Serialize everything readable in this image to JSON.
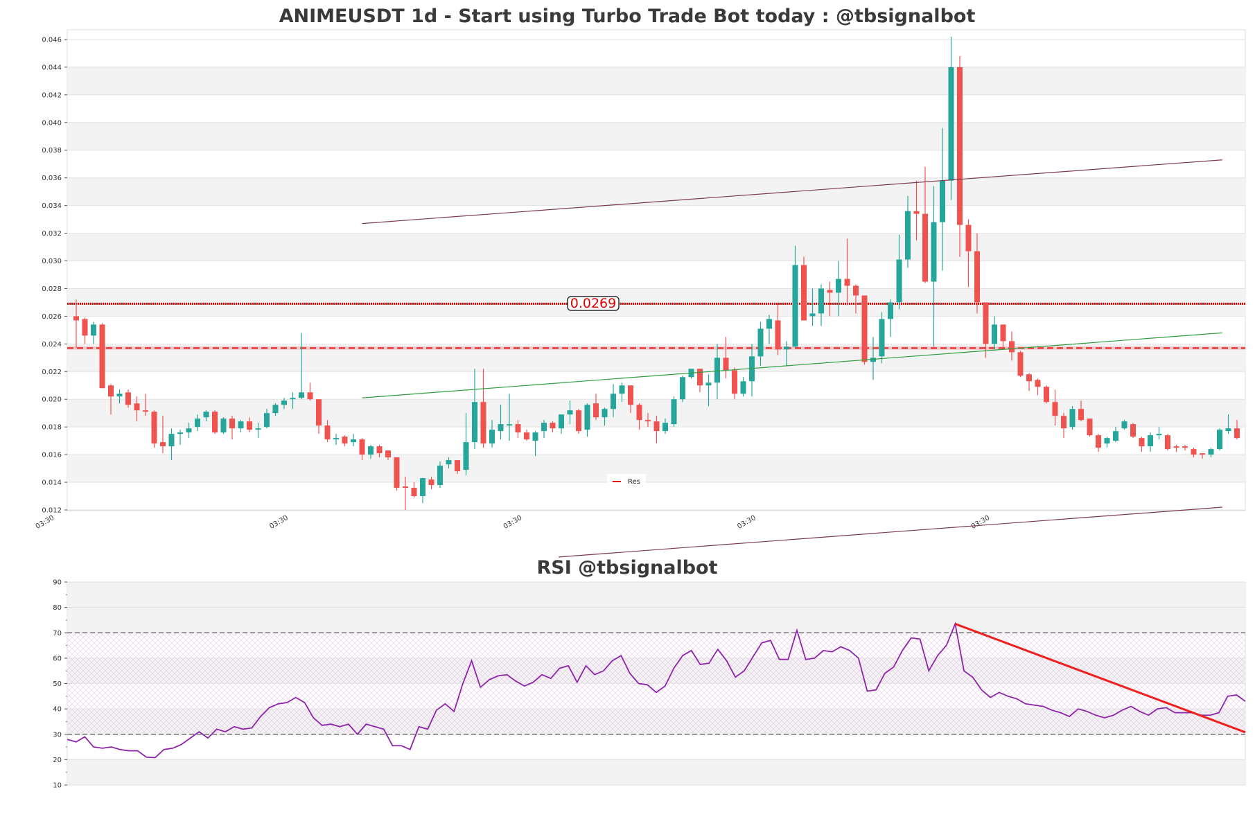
{
  "chart_data": [
    {
      "type": "candlestick",
      "title": "ANIMEUSDT 1d - Start using Turbo Trade Bot today : @tbsignalbot",
      "ylim": [
        0.01195,
        0.0467
      ],
      "yticks": [
        "0.012",
        "0.014",
        "0.016",
        "0.018",
        "0.020",
        "0.022",
        "0.024",
        "0.026",
        "0.028",
        "0.030",
        "0.032",
        "0.034",
        "0.036",
        "0.038",
        "0.040",
        "0.042",
        "0.044",
        "0.046"
      ],
      "xticks": [
        {
          "at": -2.5,
          "label": "03:30"
        },
        {
          "at": 24.5,
          "label": "03:30"
        },
        {
          "at": 51.5,
          "label": "03:30"
        },
        {
          "at": 78.5,
          "label": "03:30"
        },
        {
          "at": 105.5,
          "label": "03:30"
        }
      ],
      "colors": {
        "up": "#26a69a",
        "down": "#ef5350",
        "res": "#e00000",
        "upper_trend": "#7b3a4a",
        "lower_trend": "#2e9e3e"
      },
      "ohlc": [
        [
          0.026,
          0.0272,
          0.0237,
          0.0257
        ],
        [
          0.0258,
          0.0259,
          0.024,
          0.0246
        ],
        [
          0.0246,
          0.0256,
          0.024,
          0.0254
        ],
        [
          0.0254,
          0.0255,
          0.0208,
          0.0208
        ],
        [
          0.021,
          0.0211,
          0.0189,
          0.0202
        ],
        [
          0.0202,
          0.0207,
          0.0197,
          0.0204
        ],
        [
          0.0205,
          0.0207,
          0.0194,
          0.0196
        ],
        [
          0.0197,
          0.0202,
          0.0184,
          0.0192
        ],
        [
          0.0192,
          0.0204,
          0.0188,
          0.0191
        ],
        [
          0.0191,
          0.0192,
          0.0165,
          0.0168
        ],
        [
          0.0169,
          0.0188,
          0.0161,
          0.0166
        ],
        [
          0.0166,
          0.0179,
          0.0156,
          0.0175
        ],
        [
          0.0175,
          0.0178,
          0.0167,
          0.0176
        ],
        [
          0.0176,
          0.0183,
          0.0172,
          0.0179
        ],
        [
          0.018,
          0.0189,
          0.0177,
          0.0186
        ],
        [
          0.0187,
          0.0192,
          0.0184,
          0.0191
        ],
        [
          0.0191,
          0.0192,
          0.0175,
          0.0176
        ],
        [
          0.0176,
          0.0187,
          0.0175,
          0.0186
        ],
        [
          0.0186,
          0.0188,
          0.0171,
          0.0179
        ],
        [
          0.0179,
          0.0185,
          0.0176,
          0.0184
        ],
        [
          0.0184,
          0.0187,
          0.0176,
          0.0178
        ],
        [
          0.0178,
          0.0183,
          0.0172,
          0.0179
        ],
        [
          0.018,
          0.0193,
          0.0179,
          0.019
        ],
        [
          0.019,
          0.0197,
          0.0188,
          0.0196
        ],
        [
          0.0196,
          0.0201,
          0.0193,
          0.0199
        ],
        [
          0.02,
          0.0205,
          0.0193,
          0.0201
        ],
        [
          0.0201,
          0.0248,
          0.02,
          0.0205
        ],
        [
          0.0205,
          0.0212,
          0.0199,
          0.02
        ],
        [
          0.02,
          0.02,
          0.0175,
          0.0181
        ],
        [
          0.0181,
          0.0185,
          0.0169,
          0.0171
        ],
        [
          0.0171,
          0.0175,
          0.0167,
          0.0172
        ],
        [
          0.0173,
          0.0174,
          0.0166,
          0.0168
        ],
        [
          0.0169,
          0.0175,
          0.0166,
          0.0171
        ],
        [
          0.0171,
          0.0172,
          0.0156,
          0.016
        ],
        [
          0.016,
          0.0167,
          0.0157,
          0.0166
        ],
        [
          0.0166,
          0.0167,
          0.0158,
          0.0161
        ],
        [
          0.0163,
          0.0163,
          0.0156,
          0.0158
        ],
        [
          0.0158,
          0.0158,
          0.0134,
          0.0136
        ],
        [
          0.0137,
          0.0144,
          0.012,
          0.0136
        ],
        [
          0.0136,
          0.014,
          0.0129,
          0.013
        ],
        [
          0.013,
          0.0143,
          0.0125,
          0.0143
        ],
        [
          0.0142,
          0.0144,
          0.0135,
          0.0138
        ],
        [
          0.0138,
          0.0155,
          0.0136,
          0.0152
        ],
        [
          0.0153,
          0.0158,
          0.015,
          0.0156
        ],
        [
          0.0156,
          0.0156,
          0.0146,
          0.0148
        ],
        [
          0.0149,
          0.019,
          0.0145,
          0.0169
        ],
        [
          0.0169,
          0.0222,
          0.0164,
          0.0198
        ],
        [
          0.0198,
          0.0222,
          0.0165,
          0.0168
        ],
        [
          0.0168,
          0.0185,
          0.0165,
          0.0178
        ],
        [
          0.0177,
          0.0196,
          0.0171,
          0.0182
        ],
        [
          0.0181,
          0.0204,
          0.017,
          0.0182
        ],
        [
          0.0182,
          0.0185,
          0.0172,
          0.0176
        ],
        [
          0.0176,
          0.0178,
          0.017,
          0.0171
        ],
        [
          0.017,
          0.0177,
          0.0159,
          0.0176
        ],
        [
          0.0177,
          0.0185,
          0.0172,
          0.0183
        ],
        [
          0.0183,
          0.0184,
          0.0176,
          0.0179
        ],
        [
          0.0179,
          0.0189,
          0.0175,
          0.0189
        ],
        [
          0.0189,
          0.0199,
          0.0182,
          0.0192
        ],
        [
          0.0192,
          0.0193,
          0.0175,
          0.0177
        ],
        [
          0.0178,
          0.0197,
          0.0173,
          0.0196
        ],
        [
          0.0197,
          0.0204,
          0.0185,
          0.0187
        ],
        [
          0.0187,
          0.0194,
          0.0181,
          0.0193
        ],
        [
          0.0193,
          0.0211,
          0.0187,
          0.0204
        ],
        [
          0.0204,
          0.0212,
          0.0198,
          0.021
        ],
        [
          0.021,
          0.021,
          0.019,
          0.0196
        ],
        [
          0.0196,
          0.0197,
          0.0178,
          0.0185
        ],
        [
          0.0185,
          0.019,
          0.018,
          0.0184
        ],
        [
          0.0184,
          0.0188,
          0.0168,
          0.0177
        ],
        [
          0.0177,
          0.0186,
          0.0175,
          0.0183
        ],
        [
          0.0182,
          0.0202,
          0.018,
          0.02
        ],
        [
          0.02,
          0.0217,
          0.0198,
          0.0216
        ],
        [
          0.0216,
          0.0222,
          0.0215,
          0.0222
        ],
        [
          0.0222,
          0.0222,
          0.0205,
          0.021
        ],
        [
          0.021,
          0.0218,
          0.0195,
          0.0212
        ],
        [
          0.0212,
          0.024,
          0.02,
          0.023
        ],
        [
          0.023,
          0.0245,
          0.0215,
          0.0221
        ],
        [
          0.0221,
          0.0223,
          0.02,
          0.0204
        ],
        [
          0.0204,
          0.0216,
          0.0202,
          0.0213
        ],
        [
          0.0213,
          0.024,
          0.0202,
          0.0231
        ],
        [
          0.0231,
          0.0256,
          0.0224,
          0.0251
        ],
        [
          0.0251,
          0.0261,
          0.024,
          0.0258
        ],
        [
          0.0257,
          0.0269,
          0.0232,
          0.0236
        ],
        [
          0.0236,
          0.0242,
          0.0224,
          0.0238
        ],
        [
          0.0238,
          0.0311,
          0.0237,
          0.0297
        ],
        [
          0.0297,
          0.0303,
          0.0257,
          0.0257
        ],
        [
          0.026,
          0.028,
          0.0253,
          0.0262
        ],
        [
          0.0262,
          0.0283,
          0.0253,
          0.028
        ],
        [
          0.0279,
          0.0285,
          0.026,
          0.0277
        ],
        [
          0.0277,
          0.03,
          0.026,
          0.0287
        ],
        [
          0.0287,
          0.0316,
          0.0268,
          0.0282
        ],
        [
          0.0282,
          0.0283,
          0.0262,
          0.0275
        ],
        [
          0.0275,
          0.0275,
          0.0225,
          0.0227
        ],
        [
          0.0227,
          0.0245,
          0.0214,
          0.023
        ],
        [
          0.0231,
          0.0263,
          0.0226,
          0.0258
        ],
        [
          0.0258,
          0.0272,
          0.0245,
          0.027
        ],
        [
          0.027,
          0.0319,
          0.0265,
          0.0301
        ],
        [
          0.0301,
          0.0347,
          0.0295,
          0.0336
        ],
        [
          0.0336,
          0.0358,
          0.0315,
          0.0334
        ],
        [
          0.0334,
          0.0368,
          0.0284,
          0.0285
        ],
        [
          0.0285,
          0.0354,
          0.0238,
          0.0328
        ],
        [
          0.0328,
          0.0396,
          0.0293,
          0.0358
        ],
        [
          0.0358,
          0.0462,
          0.0344,
          0.044
        ],
        [
          0.044,
          0.0448,
          0.0303,
          0.0326
        ],
        [
          0.0326,
          0.033,
          0.0281,
          0.0307
        ],
        [
          0.0307,
          0.032,
          0.0262,
          0.027
        ],
        [
          0.027,
          0.027,
          0.023,
          0.024
        ],
        [
          0.024,
          0.026,
          0.0236,
          0.0254
        ],
        [
          0.0254,
          0.0254,
          0.0237,
          0.0242
        ],
        [
          0.0242,
          0.0249,
          0.0228,
          0.0234
        ],
        [
          0.0234,
          0.0235,
          0.0216,
          0.0217
        ],
        [
          0.0218,
          0.0219,
          0.0206,
          0.0213
        ],
        [
          0.0214,
          0.0215,
          0.0203,
          0.0209
        ],
        [
          0.0209,
          0.021,
          0.0197,
          0.0198
        ],
        [
          0.0198,
          0.0207,
          0.0181,
          0.0188
        ],
        [
          0.0188,
          0.019,
          0.0172,
          0.0179
        ],
        [
          0.018,
          0.0195,
          0.0178,
          0.0193
        ],
        [
          0.0193,
          0.0199,
          0.0184,
          0.0185
        ],
        [
          0.0186,
          0.0186,
          0.0173,
          0.0174
        ],
        [
          0.0174,
          0.0175,
          0.0162,
          0.0165
        ],
        [
          0.0168,
          0.0173,
          0.0165,
          0.0172
        ],
        [
          0.017,
          0.018,
          0.0169,
          0.0177
        ],
        [
          0.0179,
          0.0185,
          0.0178,
          0.0184
        ],
        [
          0.0182,
          0.0183,
          0.0172,
          0.0173
        ],
        [
          0.0172,
          0.0173,
          0.0162,
          0.0166
        ],
        [
          0.0166,
          0.0176,
          0.0162,
          0.0174
        ],
        [
          0.0174,
          0.018,
          0.0171,
          0.0175
        ],
        [
          0.0174,
          0.0175,
          0.0163,
          0.0164
        ],
        [
          0.0166,
          0.0167,
          0.0162,
          0.0165
        ],
        [
          0.0166,
          0.0167,
          0.0163,
          0.0165
        ],
        [
          0.0164,
          0.0165,
          0.0158,
          0.016
        ],
        [
          0.0161,
          0.0161,
          0.0157,
          0.016
        ],
        [
          0.016,
          0.0165,
          0.0158,
          0.0164
        ],
        [
          0.0164,
          0.0179,
          0.0163,
          0.0178
        ],
        [
          0.0177,
          0.0189,
          0.0175,
          0.0179
        ],
        [
          0.0179,
          0.0185,
          0.0171,
          0.0172
        ]
      ],
      "hlines": [
        {
          "value": 0.0269,
          "style": "dotted",
          "label": "0.0269"
        },
        {
          "value": 0.0237,
          "style": "dashed"
        }
      ],
      "trendlines": [
        {
          "name": "upper",
          "from": [
            33,
            0.0327
          ],
          "to": [
            132.3,
            0.0373
          ]
        },
        {
          "name": "support",
          "from": [
            33,
            0.0201
          ],
          "to": [
            132.3,
            0.0248
          ]
        },
        {
          "name": "lower",
          "from": [
            55.7,
            0.0086
          ],
          "to": [
            132.3,
            0.0122
          ]
        }
      ],
      "legend": {
        "label": "Res",
        "placement": "bottom-center"
      }
    },
    {
      "type": "line",
      "title": "RSI @tbsignalbot",
      "ylim": [
        10,
        90
      ],
      "yticks": [
        "10",
        "20",
        "30",
        "40",
        "50",
        "60",
        "70",
        "80",
        "90"
      ],
      "levels": [
        30,
        70
      ],
      "color": "#8e24aa",
      "trend_color": "#f02020",
      "values": [
        28,
        27,
        29,
        25,
        24.5,
        25,
        24,
        23.5,
        23.5,
        21,
        20.8,
        24,
        24.5,
        26,
        28.5,
        31,
        28.5,
        32,
        31,
        33,
        32,
        32.5,
        37,
        40.5,
        42,
        42.5,
        44.5,
        42.5,
        36.5,
        33.5,
        34,
        33,
        34,
        30,
        34,
        33,
        32,
        25.5,
        25.5,
        24,
        33,
        32,
        39.5,
        42,
        39,
        50,
        59,
        48.5,
        51.5,
        53,
        53.5,
        51,
        49,
        50.5,
        53.5,
        52,
        56,
        57,
        50.5,
        57,
        53.5,
        55,
        59,
        61,
        54,
        50,
        49.5,
        46.5,
        49,
        56,
        61,
        63,
        57.5,
        58,
        63.5,
        59,
        52.5,
        55,
        60.5,
        66,
        67,
        59.5,
        59.5,
        71,
        59.5,
        60,
        63,
        62.5,
        64.5,
        63,
        60,
        47,
        47.5,
        54,
        56.5,
        63,
        68,
        67.5,
        55,
        61,
        65,
        73.5,
        55,
        52.5,
        47.5,
        44.5,
        46.5,
        45,
        44,
        42,
        41.5,
        41,
        39.5,
        38.5,
        37,
        40,
        39,
        37.5,
        36.5,
        37.5,
        39.5,
        41,
        39,
        37.5,
        40,
        40.5,
        38.5,
        38.5,
        38.5,
        37.5,
        37.5,
        38.5,
        45,
        45.5,
        43
      ],
      "trendline": {
        "from": [
          101,
          73.5
        ],
        "to": [
          134,
          30.8
        ]
      }
    }
  ]
}
